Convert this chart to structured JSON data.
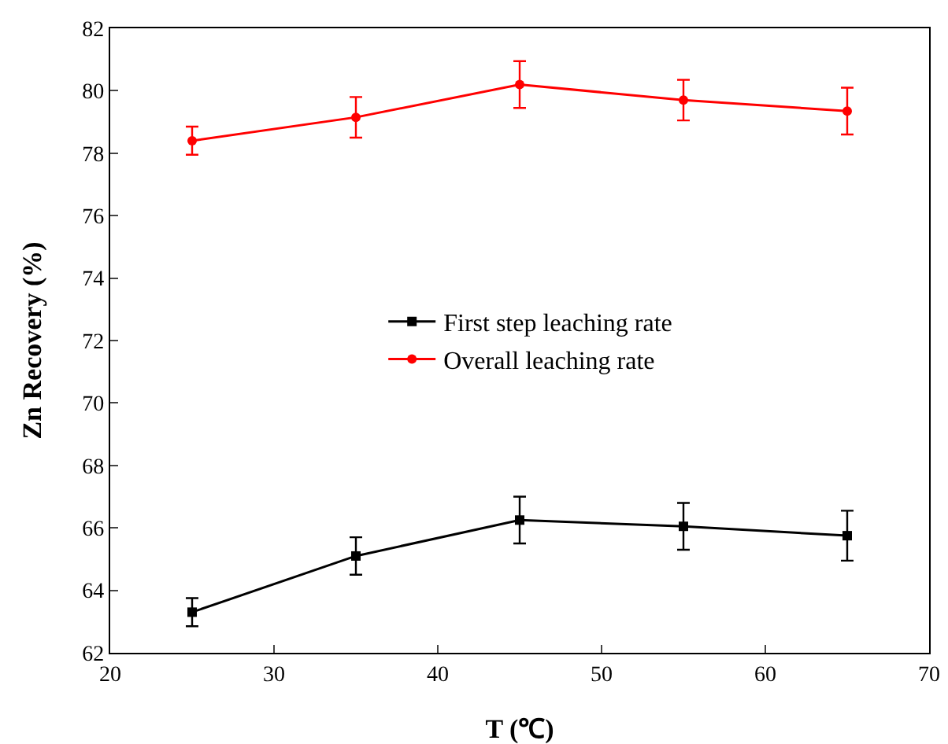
{
  "chart_data": {
    "type": "line",
    "xlabel": "T (℃)",
    "ylabel": "Zn Recovery (%)",
    "x": [
      25,
      35,
      45,
      55,
      65
    ],
    "series": [
      {
        "name": "First step leaching rate",
        "color": "#000000",
        "marker": "square",
        "values": [
          63.3,
          65.1,
          66.25,
          66.05,
          65.75
        ],
        "errors": [
          0.45,
          0.6,
          0.75,
          0.75,
          0.8
        ]
      },
      {
        "name": "Overall leaching rate",
        "color": "#ff0000",
        "marker": "circle",
        "values": [
          78.4,
          79.15,
          80.2,
          79.7,
          79.35
        ],
        "errors": [
          0.45,
          0.65,
          0.75,
          0.65,
          0.75
        ]
      }
    ],
    "xlim": [
      20,
      70
    ],
    "xticks": [
      20,
      30,
      40,
      50,
      60,
      70
    ],
    "ylim": [
      62,
      82
    ],
    "yticks": [
      62,
      64,
      66,
      68,
      70,
      72,
      74,
      76,
      78,
      80,
      82
    ],
    "grid": false,
    "legend": "center",
    "line_style": "solid"
  }
}
